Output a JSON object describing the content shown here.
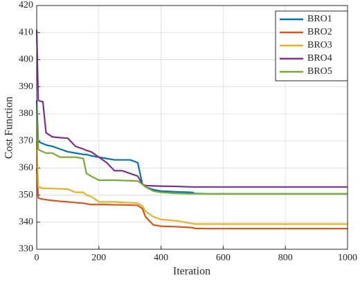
{
  "chart_data": {
    "type": "line",
    "xlabel": "Iteration",
    "ylabel": "Cost Function",
    "x": [
      0,
      5,
      10,
      20,
      30,
      50,
      75,
      100,
      125,
      150,
      160,
      175,
      200,
      225,
      250,
      275,
      300,
      325,
      340,
      350,
      375,
      400,
      450,
      500,
      510,
      550,
      600,
      700,
      800,
      900,
      1000
    ],
    "series": [
      {
        "name": "BRO1",
        "color": "#0072BD",
        "values": [
          385,
          370,
          369.5,
          369,
          368.5,
          368,
          367,
          366,
          365.5,
          365,
          365,
          364.5,
          364,
          363.5,
          363,
          363,
          363,
          362,
          354,
          353,
          352,
          351.5,
          351.2,
          351,
          350.6,
          350.5,
          350.5,
          350.5,
          350.5,
          350.5,
          350.5
        ]
      },
      {
        "name": "BRO2",
        "color": "#D95319",
        "values": [
          360,
          349,
          348.7,
          348.5,
          348.3,
          348,
          347.7,
          347.5,
          347.2,
          347,
          346.8,
          346.5,
          346.5,
          346.5,
          346.4,
          346.4,
          346.3,
          346.2,
          345,
          342,
          339,
          338.5,
          338.3,
          338,
          337.7,
          337.6,
          337.6,
          337.6,
          337.6,
          337.6,
          337.6
        ]
      },
      {
        "name": "BRO3",
        "color": "#EDB120",
        "values": [
          370,
          353,
          352.8,
          352.5,
          352.5,
          352.4,
          352.3,
          352.2,
          351,
          351,
          350,
          349.5,
          347.5,
          347.5,
          347.5,
          347.3,
          347.2,
          347,
          346,
          344,
          342,
          341,
          340.5,
          339.5,
          339.3,
          339.3,
          339.3,
          339.3,
          339.3,
          339.3,
          339.3
        ]
      },
      {
        "name": "BRO4",
        "color": "#7E2F8E",
        "values": [
          411,
          385,
          384.7,
          384.5,
          373,
          371.5,
          371.2,
          371,
          368,
          367,
          366.5,
          366,
          364,
          362,
          359,
          359,
          358,
          357,
          354,
          353.5,
          353.4,
          353.3,
          353.2,
          353,
          353,
          353,
          353,
          353,
          353,
          353,
          353
        ]
      },
      {
        "name": "BRO5",
        "color": "#77AC30",
        "values": [
          383,
          367,
          366.5,
          366,
          365.5,
          365.5,
          364,
          364,
          364,
          363.5,
          358,
          357,
          355.5,
          355.5,
          355.5,
          355.4,
          355.3,
          355.2,
          354,
          353,
          351.5,
          351,
          350.6,
          350.5,
          350.5,
          350.5,
          350.5,
          350.5,
          350.5,
          350.5,
          350.5
        ]
      }
    ],
    "xlim": [
      0,
      1000
    ],
    "xticks": [
      0,
      200,
      400,
      600,
      800,
      1000
    ],
    "ylim": [
      330,
      420
    ],
    "yticks": [
      330,
      340,
      350,
      360,
      370,
      380,
      390,
      400,
      410,
      420
    ],
    "grid": true,
    "legend": "upper right"
  }
}
